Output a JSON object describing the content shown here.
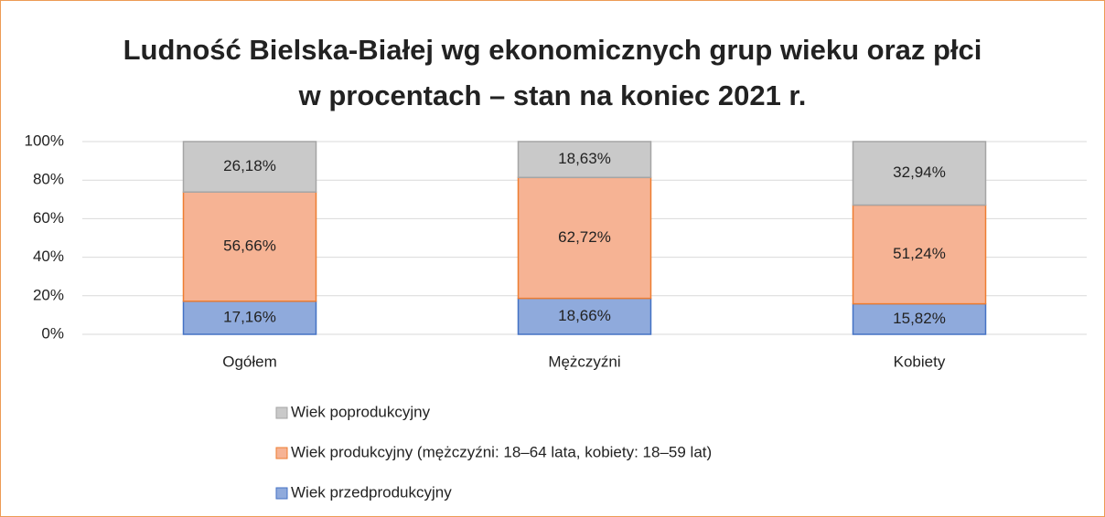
{
  "chart_data": {
    "type": "stacked_bar",
    "title": "Ludność Bielska-Białej wg ekonomicznych grup wieku oraz płci w procentach – stan na koniec 2021 r.",
    "categories": [
      "Ogółem",
      "Mężczyźni",
      "Kobiety"
    ],
    "series": [
      {
        "name": "Wiek przedprodukcyjny",
        "color": "#8faadc",
        "values": [
          17.16,
          18.66,
          15.82
        ],
        "value_labels": [
          "17,16%",
          "18,66%",
          "15,82%"
        ]
      },
      {
        "name": "Wiek produkcyjny (mężczyźni: 18–64 lata, kobiety: 18–59 lat)",
        "color": "#f6b394",
        "values": [
          56.66,
          62.72,
          51.24
        ],
        "value_labels": [
          "56,66%",
          "62,72%",
          "51,24%"
        ]
      },
      {
        "name": "Wiek poprodukcyjny",
        "color": "#c9c9c9",
        "values": [
          26.18,
          18.63,
          32.94
        ],
        "value_labels": [
          "26,18%",
          "18,63%",
          "32,94%"
        ]
      }
    ],
    "ylim": [
      0,
      100
    ],
    "yticks": [
      {
        "value": 0,
        "label": "0%"
      },
      {
        "value": 20,
        "label": "20%"
      },
      {
        "value": 40,
        "label": "40%"
      },
      {
        "value": 60,
        "label": "60%"
      },
      {
        "value": 80,
        "label": "80%"
      },
      {
        "value": 100,
        "label": "100%"
      }
    ],
    "grid": true,
    "legend": "bottom"
  }
}
